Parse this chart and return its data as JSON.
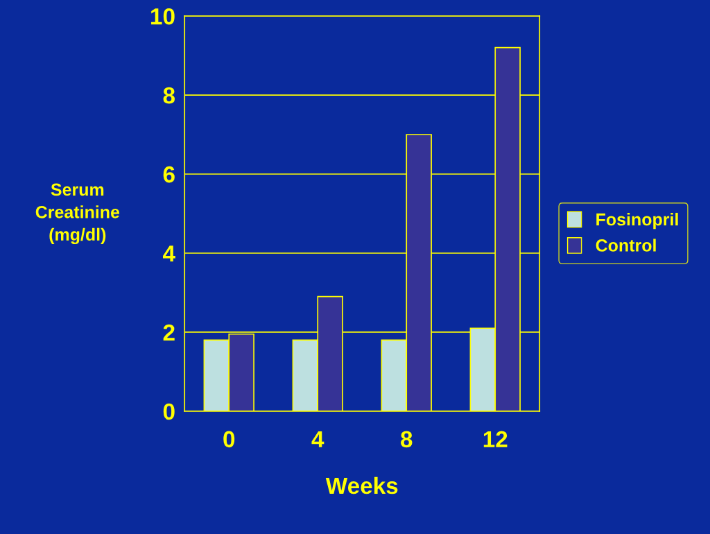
{
  "chart_data": {
    "type": "bar",
    "xlabel": "Weeks",
    "ylabel": "Serum\nCreatinine\n(mg/dl)",
    "categories": [
      "0",
      "4",
      "8",
      "12"
    ],
    "series": [
      {
        "name": "Fosinopril",
        "color": "#bde0e0",
        "values": [
          1.8,
          1.8,
          1.8,
          2.1
        ]
      },
      {
        "name": "Control",
        "color": "#363396",
        "values": [
          1.95,
          2.9,
          7.0,
          9.2
        ]
      }
    ],
    "ylim": [
      0,
      10
    ],
    "yticks": [
      0,
      2,
      4,
      6,
      8,
      10
    ],
    "grid": "y",
    "legend": "right"
  }
}
